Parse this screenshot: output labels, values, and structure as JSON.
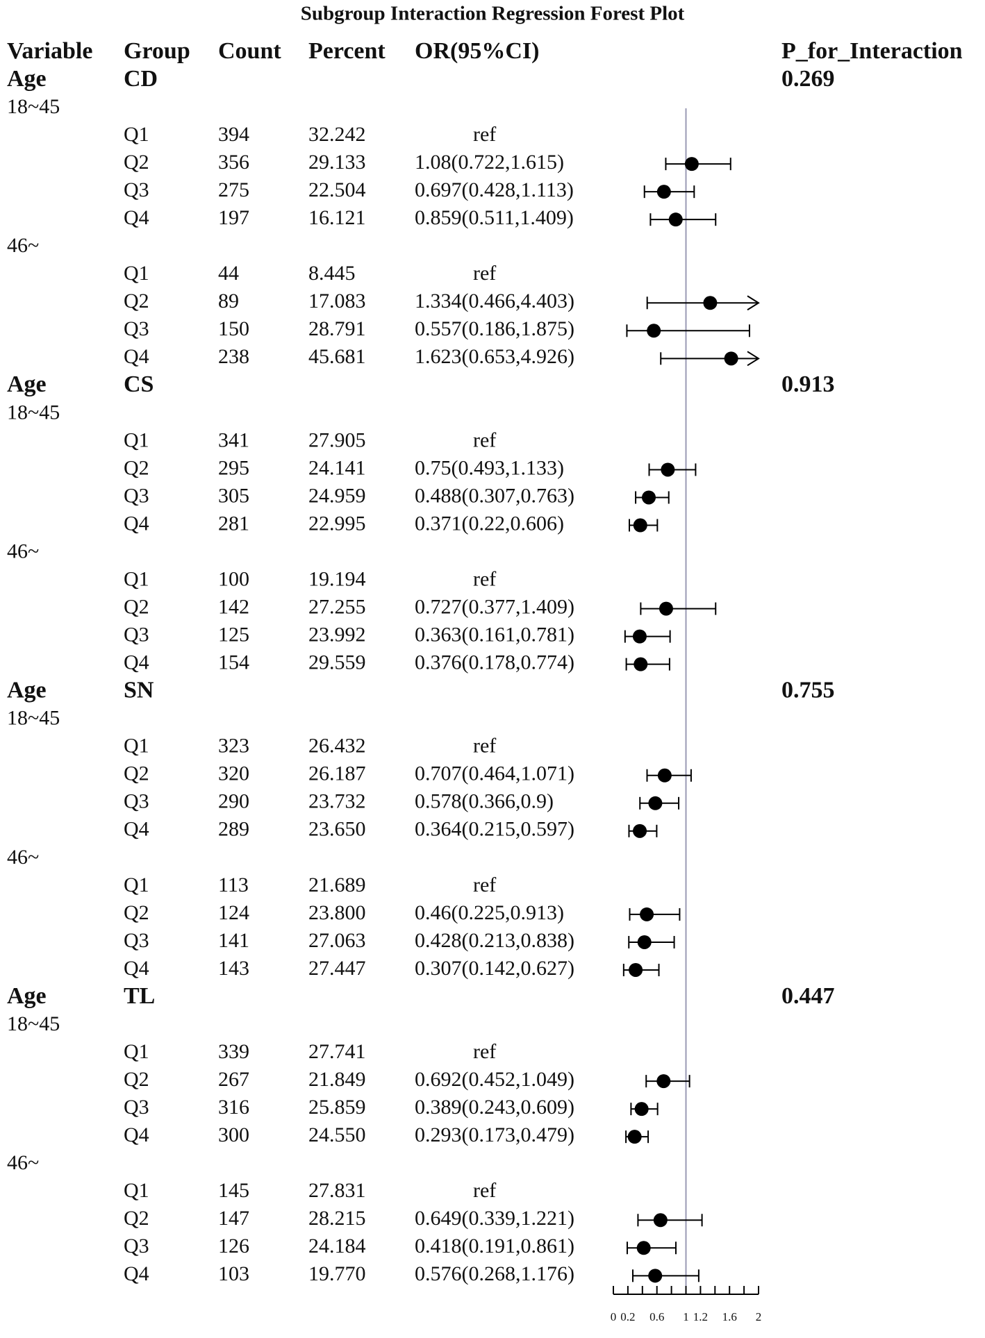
{
  "chart_data": {
    "type": "forest",
    "title": "Subgroup Interaction Regression Forest Plot",
    "columns": [
      "Variable",
      "Group",
      "Count",
      "Percent",
      "OR(95%CI)",
      "P_for_Interaction"
    ],
    "xlim": [
      0,
      2
    ],
    "xticks": [
      0,
      0.2,
      0.6,
      1,
      1.2,
      1.6,
      2
    ],
    "xminor_ticks": [
      0.4,
      0.8,
      1.4,
      1.8
    ],
    "ref_line": 1,
    "point_color": "#000000",
    "ref_line_color": "#9a9ab4",
    "sections": [
      {
        "variable": "Age",
        "group": "CD",
        "p": 0.269,
        "subgroups": [
          {
            "name": "18~45",
            "rows": [
              {
                "group": "Q1",
                "count": 394,
                "percent": "32.242",
                "or_ci": "ref",
                "or": null,
                "low": null,
                "high": null
              },
              {
                "group": "Q2",
                "count": 356,
                "percent": "29.133",
                "or_ci": "1.08(0.722,1.615)",
                "or": 1.08,
                "low": 0.722,
                "high": 1.615
              },
              {
                "group": "Q3",
                "count": 275,
                "percent": "22.504",
                "or_ci": "0.697(0.428,1.113)",
                "or": 0.697,
                "low": 0.428,
                "high": 1.113
              },
              {
                "group": "Q4",
                "count": 197,
                "percent": "16.121",
                "or_ci": "0.859(0.511,1.409)",
                "or": 0.859,
                "low": 0.511,
                "high": 1.409
              }
            ]
          },
          {
            "name": "46~",
            "rows": [
              {
                "group": "Q1",
                "count": 44,
                "percent": "8.445",
                "or_ci": "ref",
                "or": null,
                "low": null,
                "high": null
              },
              {
                "group": "Q2",
                "count": 89,
                "percent": "17.083",
                "or_ci": "1.334(0.466,4.403)",
                "or": 1.334,
                "low": 0.466,
                "high": 4.403
              },
              {
                "group": "Q3",
                "count": 150,
                "percent": "28.791",
                "or_ci": "0.557(0.186,1.875)",
                "or": 0.557,
                "low": 0.186,
                "high": 1.875
              },
              {
                "group": "Q4",
                "count": 238,
                "percent": "45.681",
                "or_ci": "1.623(0.653,4.926)",
                "or": 1.623,
                "low": 0.653,
                "high": 4.926
              }
            ]
          }
        ]
      },
      {
        "variable": "Age",
        "group": "CS",
        "p": 0.913,
        "subgroups": [
          {
            "name": "18~45",
            "rows": [
              {
                "group": "Q1",
                "count": 341,
                "percent": "27.905",
                "or_ci": "ref",
                "or": null,
                "low": null,
                "high": null
              },
              {
                "group": "Q2",
                "count": 295,
                "percent": "24.141",
                "or_ci": "0.75(0.493,1.133)",
                "or": 0.75,
                "low": 0.493,
                "high": 1.133
              },
              {
                "group": "Q3",
                "count": 305,
                "percent": "24.959",
                "or_ci": "0.488(0.307,0.763)",
                "or": 0.488,
                "low": 0.307,
                "high": 0.763
              },
              {
                "group": "Q4",
                "count": 281,
                "percent": "22.995",
                "or_ci": "0.371(0.22,0.606)",
                "or": 0.371,
                "low": 0.22,
                "high": 0.606
              }
            ]
          },
          {
            "name": "46~",
            "rows": [
              {
                "group": "Q1",
                "count": 100,
                "percent": "19.194",
                "or_ci": "ref",
                "or": null,
                "low": null,
                "high": null
              },
              {
                "group": "Q2",
                "count": 142,
                "percent": "27.255",
                "or_ci": "0.727(0.377,1.409)",
                "or": 0.727,
                "low": 0.377,
                "high": 1.409
              },
              {
                "group": "Q3",
                "count": 125,
                "percent": "23.992",
                "or_ci": "0.363(0.161,0.781)",
                "or": 0.363,
                "low": 0.161,
                "high": 0.781
              },
              {
                "group": "Q4",
                "count": 154,
                "percent": "29.559",
                "or_ci": "0.376(0.178,0.774)",
                "or": 0.376,
                "low": 0.178,
                "high": 0.774
              }
            ]
          }
        ]
      },
      {
        "variable": "Age",
        "group": "SN",
        "p": 0.755,
        "subgroups": [
          {
            "name": "18~45",
            "rows": [
              {
                "group": "Q1",
                "count": 323,
                "percent": "26.432",
                "or_ci": "ref",
                "or": null,
                "low": null,
                "high": null
              },
              {
                "group": "Q2",
                "count": 320,
                "percent": "26.187",
                "or_ci": "0.707(0.464,1.071)",
                "or": 0.707,
                "low": 0.464,
                "high": 1.071
              },
              {
                "group": "Q3",
                "count": 290,
                "percent": "23.732",
                "or_ci": "0.578(0.366,0.9)",
                "or": 0.578,
                "low": 0.366,
                "high": 0.9
              },
              {
                "group": "Q4",
                "count": 289,
                "percent": "23.650",
                "or_ci": "0.364(0.215,0.597)",
                "or": 0.364,
                "low": 0.215,
                "high": 0.597
              }
            ]
          },
          {
            "name": "46~",
            "rows": [
              {
                "group": "Q1",
                "count": 113,
                "percent": "21.689",
                "or_ci": "ref",
                "or": null,
                "low": null,
                "high": null
              },
              {
                "group": "Q2",
                "count": 124,
                "percent": "23.800",
                "or_ci": "0.46(0.225,0.913)",
                "or": 0.46,
                "low": 0.225,
                "high": 0.913
              },
              {
                "group": "Q3",
                "count": 141,
                "percent": "27.063",
                "or_ci": "0.428(0.213,0.838)",
                "or": 0.428,
                "low": 0.213,
                "high": 0.838
              },
              {
                "group": "Q4",
                "count": 143,
                "percent": "27.447",
                "or_ci": "0.307(0.142,0.627)",
                "or": 0.307,
                "low": 0.142,
                "high": 0.627
              }
            ]
          }
        ]
      },
      {
        "variable": "Age",
        "group": "TL",
        "p": 0.447,
        "subgroups": [
          {
            "name": "18~45",
            "rows": [
              {
                "group": "Q1",
                "count": 339,
                "percent": "27.741",
                "or_ci": "ref",
                "or": null,
                "low": null,
                "high": null
              },
              {
                "group": "Q2",
                "count": 267,
                "percent": "21.849",
                "or_ci": "0.692(0.452,1.049)",
                "or": 0.692,
                "low": 0.452,
                "high": 1.049
              },
              {
                "group": "Q3",
                "count": 316,
                "percent": "25.859",
                "or_ci": "0.389(0.243,0.609)",
                "or": 0.389,
                "low": 0.243,
                "high": 0.609
              },
              {
                "group": "Q4",
                "count": 300,
                "percent": "24.550",
                "or_ci": "0.293(0.173,0.479)",
                "or": 0.293,
                "low": 0.173,
                "high": 0.479
              }
            ]
          },
          {
            "name": "46~",
            "rows": [
              {
                "group": "Q1",
                "count": 145,
                "percent": "27.831",
                "or_ci": "ref",
                "or": null,
                "low": null,
                "high": null
              },
              {
                "group": "Q2",
                "count": 147,
                "percent": "28.215",
                "or_ci": "0.649(0.339,1.221)",
                "or": 0.649,
                "low": 0.339,
                "high": 1.221
              },
              {
                "group": "Q3",
                "count": 126,
                "percent": "24.184",
                "or_ci": "0.418(0.191,0.861)",
                "or": 0.418,
                "low": 0.191,
                "high": 0.861
              },
              {
                "group": "Q4",
                "count": 103,
                "percent": "19.770",
                "or_ci": "0.576(0.268,1.176)",
                "or": 0.576,
                "low": 0.268,
                "high": 1.176
              }
            ]
          }
        ]
      }
    ]
  }
}
